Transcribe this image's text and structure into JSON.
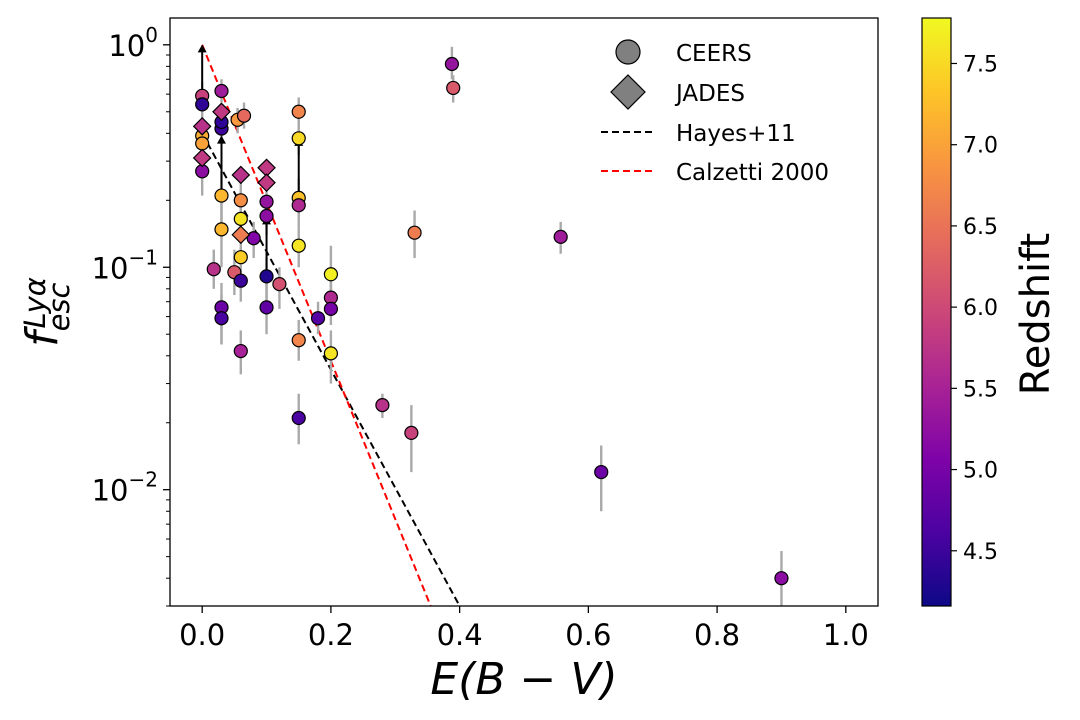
{
  "chart_data": {
    "type": "scatter",
    "title": "",
    "xlabel": "E(B − V)",
    "ylabel": "f esc Lyα",
    "ylabel_main": "f",
    "ylabel_sub": "esc",
    "ylabel_sup": "Lyα",
    "xlim": [
      -0.05,
      1.05
    ],
    "ylim": [
      0.003,
      1.32
    ],
    "yscale": "log",
    "x_ticks": [
      {
        "value": 0.0,
        "label": "0.0"
      },
      {
        "value": 0.2,
        "label": "0.2"
      },
      {
        "value": 0.4,
        "label": "0.4"
      },
      {
        "value": 0.6,
        "label": "0.6"
      },
      {
        "value": 0.8,
        "label": "0.8"
      },
      {
        "value": 1.0,
        "label": "1.0"
      }
    ],
    "y_ticks": [
      {
        "value": 0.01,
        "base": "10",
        "exp": "−2"
      },
      {
        "value": 0.1,
        "base": "10",
        "exp": "−1"
      },
      {
        "value": 1.0,
        "base": "10",
        "exp": "0"
      }
    ],
    "colorbar": {
      "label": "Redshift",
      "cmap": "plasma",
      "range": [
        4.16,
        7.78
      ],
      "ticks": [
        {
          "value": 4.5,
          "label": "4.5"
        },
        {
          "value": 5.0,
          "label": "5.0"
        },
        {
          "value": 5.5,
          "label": "5.5"
        },
        {
          "value": 6.0,
          "label": "6.0"
        },
        {
          "value": 6.5,
          "label": "6.5"
        },
        {
          "value": 7.0,
          "label": "7.0"
        },
        {
          "value": 7.5,
          "label": "7.5"
        }
      ]
    },
    "legend": {
      "position": "top-right",
      "entries": [
        {
          "label": "CEERS",
          "marker": "circle",
          "color": "#808080"
        },
        {
          "label": "JADES",
          "marker": "diamond",
          "color": "#808080"
        },
        {
          "label": "Hayes+11",
          "line": "dashed",
          "color": "#000000"
        },
        {
          "label": "Calzetti 2000",
          "line": "dashed",
          "color": "#ff0000"
        }
      ]
    },
    "lines": [
      {
        "name": "Hayes+11",
        "color": "#000000",
        "x": [
          0.0,
          0.4
        ],
        "y": [
          0.4,
          0.003
        ]
      },
      {
        "name": "Calzetti 2000",
        "color": "#ff0000",
        "x": [
          0.0,
          0.355
        ],
        "y": [
          1.0,
          0.003
        ]
      }
    ],
    "series": [
      {
        "name": "CEERS",
        "marker": "circle",
        "points": [
          {
            "x": 0.0,
            "y": 0.59,
            "z": 5.9,
            "err": [
              0.52,
              0.68
            ]
          },
          {
            "x": 0.0,
            "y": 0.54,
            "z": 4.4,
            "err": [
              0.45,
              0.62
            ],
            "lower_limit": true
          },
          {
            "x": 0.0,
            "y": 0.39,
            "z": 7.1,
            "err": [
              0.33,
              0.45
            ]
          },
          {
            "x": 0.0,
            "y": 0.36,
            "z": 7.0,
            "err": [
              0.3,
              0.42
            ]
          },
          {
            "x": 0.0,
            "y": 0.27,
            "z": 5.2,
            "err": [
              0.21,
              0.33
            ]
          },
          {
            "x": 0.03,
            "y": 0.62,
            "z": 5.4,
            "err": [
              0.55,
              0.7
            ]
          },
          {
            "x": 0.03,
            "y": 0.42,
            "z": 4.5,
            "err": [
              0.36,
              0.5
            ]
          },
          {
            "x": 0.03,
            "y": 0.45,
            "z": 4.4,
            "err": [
              0.38,
              0.52
            ]
          },
          {
            "x": 0.03,
            "y": 0.21,
            "z": 7.2,
            "err": [
              0.15,
              0.27
            ],
            "lower_limit": true
          },
          {
            "x": 0.03,
            "y": 0.148,
            "z": 7.2,
            "err": [
              0.1,
              0.2
            ]
          },
          {
            "x": 0.03,
            "y": 0.066,
            "z": 4.9,
            "err": [
              0.045,
              0.085
            ]
          },
          {
            "x": 0.03,
            "y": 0.059,
            "z": 4.6,
            "err": [
              0.045,
              0.075
            ]
          },
          {
            "x": 0.018,
            "y": 0.098,
            "z": 5.7,
            "err": [
              0.08,
              0.12
            ]
          },
          {
            "x": 0.05,
            "y": 0.095,
            "z": 6.2,
            "err": [
              0.075,
              0.12
            ]
          },
          {
            "x": 0.055,
            "y": 0.46,
            "z": 6.9,
            "err": [
              0.4,
              0.52
            ]
          },
          {
            "x": 0.065,
            "y": 0.48,
            "z": 6.4,
            "err": [
              0.42,
              0.55
            ]
          },
          {
            "x": 0.06,
            "y": 0.2,
            "z": 6.8,
            "err": [
              0.16,
              0.24
            ]
          },
          {
            "x": 0.06,
            "y": 0.165,
            "z": 7.6,
            "err": [
              0.13,
              0.2
            ]
          },
          {
            "x": 0.06,
            "y": 0.111,
            "z": 7.4,
            "err": [
              0.085,
              0.14
            ]
          },
          {
            "x": 0.06,
            "y": 0.087,
            "z": 4.5,
            "err": [
              0.07,
              0.1
            ]
          },
          {
            "x": 0.06,
            "y": 0.042,
            "z": 5.5,
            "err": [
              0.033,
              0.052
            ]
          },
          {
            "x": 0.08,
            "y": 0.135,
            "z": 5.1,
            "err": [
              0.11,
              0.16
            ]
          },
          {
            "x": 0.1,
            "y": 0.197,
            "z": 5.3,
            "err": [
              0.17,
              0.23
            ]
          },
          {
            "x": 0.1,
            "y": 0.17,
            "z": 5.2,
            "err": [
              0.14,
              0.2
            ]
          },
          {
            "x": 0.1,
            "y": 0.091,
            "z": 4.3,
            "err": [
              0.07,
              0.11
            ],
            "lower_limit": true
          },
          {
            "x": 0.1,
            "y": 0.066,
            "z": 4.8,
            "err": [
              0.05,
              0.085
            ]
          },
          {
            "x": 0.12,
            "y": 0.084,
            "z": 6.1,
            "err": [
              0.065,
              0.1
            ]
          },
          {
            "x": 0.15,
            "y": 0.5,
            "z": 6.7,
            "err": [
              0.42,
              0.58
            ]
          },
          {
            "x": 0.15,
            "y": 0.38,
            "z": 7.5,
            "err": [
              0.32,
              0.45
            ]
          },
          {
            "x": 0.15,
            "y": 0.205,
            "z": 7.3,
            "err": [
              0.17,
              0.25
            ],
            "lower_limit": true
          },
          {
            "x": 0.15,
            "y": 0.19,
            "z": 5.6,
            "err": [
              0.15,
              0.23
            ]
          },
          {
            "x": 0.15,
            "y": 0.125,
            "z": 7.6,
            "err": [
              0.1,
              0.15
            ]
          },
          {
            "x": 0.15,
            "y": 0.047,
            "z": 6.7,
            "err": [
              0.038,
              0.058
            ]
          },
          {
            "x": 0.15,
            "y": 0.021,
            "z": 4.6,
            "err": [
              0.016,
              0.027
            ]
          },
          {
            "x": 0.18,
            "y": 0.059,
            "z": 4.7,
            "err": [
              0.05,
              0.07
            ]
          },
          {
            "x": 0.2,
            "y": 0.093,
            "z": 7.7,
            "err": [
              0.07,
              0.125
            ]
          },
          {
            "x": 0.2,
            "y": 0.073,
            "z": 5.6,
            "err": [
              0.06,
              0.09
            ]
          },
          {
            "x": 0.2,
            "y": 0.065,
            "z": 5.0,
            "err": [
              0.055,
              0.08
            ]
          },
          {
            "x": 0.2,
            "y": 0.041,
            "z": 7.6,
            "err": [
              0.03,
              0.052
            ]
          },
          {
            "x": 0.28,
            "y": 0.024,
            "z": 5.7,
            "err": [
              0.021,
              0.027
            ]
          },
          {
            "x": 0.325,
            "y": 0.018,
            "z": 5.9,
            "err": [
              0.012,
              0.024
            ]
          },
          {
            "x": 0.33,
            "y": 0.143,
            "z": 6.6,
            "err": [
              0.11,
              0.18
            ]
          },
          {
            "x": 0.388,
            "y": 0.82,
            "z": 5.3,
            "err": [
              0.7,
              0.98
            ]
          },
          {
            "x": 0.39,
            "y": 0.64,
            "z": 6.2,
            "err": [
              0.55,
              0.73
            ]
          },
          {
            "x": 0.557,
            "y": 0.137,
            "z": 5.4,
            "err": [
              0.115,
              0.16
            ]
          },
          {
            "x": 0.62,
            "y": 0.012,
            "z": 4.9,
            "err": [
              0.008,
              0.0158
            ]
          },
          {
            "x": 0.9,
            "y": 0.004,
            "z": 5.2,
            "err": [
              0.003,
              0.0053
            ]
          }
        ]
      },
      {
        "name": "JADES",
        "marker": "diamond",
        "points": [
          {
            "x": 0.0,
            "y": 0.43,
            "z": 5.7
          },
          {
            "x": 0.0,
            "y": 0.31,
            "z": 5.8
          },
          {
            "x": 0.03,
            "y": 0.5,
            "z": 5.8
          },
          {
            "x": 0.06,
            "y": 0.26,
            "z": 5.7
          },
          {
            "x": 0.06,
            "y": 0.14,
            "z": 6.6
          },
          {
            "x": 0.1,
            "y": 0.28,
            "z": 5.8
          },
          {
            "x": 0.1,
            "y": 0.24,
            "z": 5.8
          }
        ]
      }
    ]
  }
}
